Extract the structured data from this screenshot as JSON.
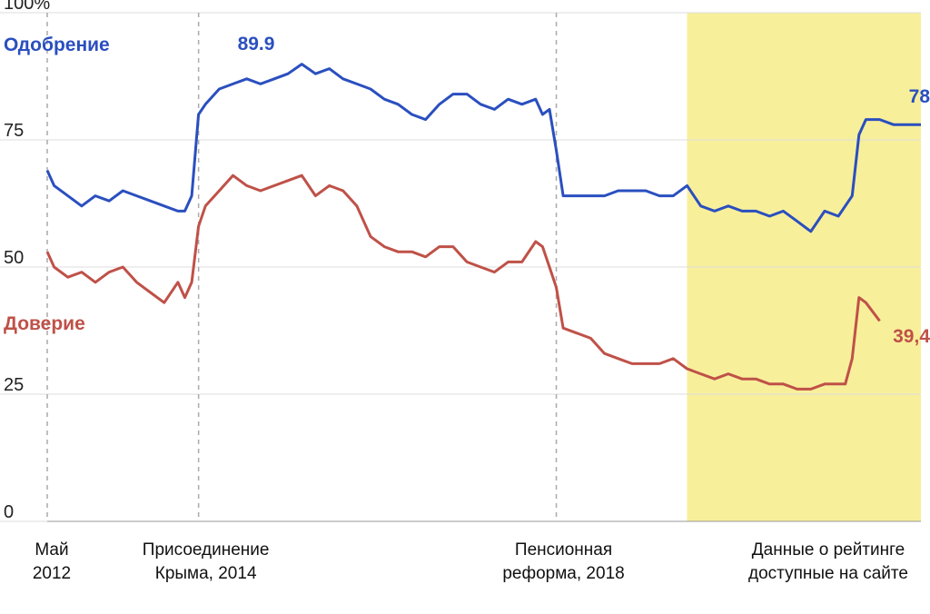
{
  "chart_data": {
    "type": "line",
    "ylim": [
      0,
      100
    ],
    "x_range": [
      "2012-05",
      "2022-12"
    ],
    "y_ticks": [
      "0",
      "25",
      "50",
      "75",
      "100%"
    ],
    "grid": true,
    "series": [
      {
        "name": "Одобрение",
        "color": "#2a4fbf",
        "points": [
          [
            "2012-05",
            69
          ],
          [
            "2012-06",
            66
          ],
          [
            "2012-08",
            64
          ],
          [
            "2012-10",
            62
          ],
          [
            "2012-12",
            64
          ],
          [
            "2013-02",
            63
          ],
          [
            "2013-04",
            65
          ],
          [
            "2013-06",
            64
          ],
          [
            "2013-08",
            63
          ],
          [
            "2013-10",
            62
          ],
          [
            "2013-12",
            61
          ],
          [
            "2014-01",
            61
          ],
          [
            "2014-02",
            64
          ],
          [
            "2014-03",
            80
          ],
          [
            "2014-04",
            82
          ],
          [
            "2014-06",
            85
          ],
          [
            "2014-08",
            86
          ],
          [
            "2014-10",
            87
          ],
          [
            "2014-12",
            86
          ],
          [
            "2015-02",
            87
          ],
          [
            "2015-04",
            88
          ],
          [
            "2015-06",
            89.9
          ],
          [
            "2015-08",
            88
          ],
          [
            "2015-10",
            89
          ],
          [
            "2015-12",
            87
          ],
          [
            "2016-02",
            86
          ],
          [
            "2016-04",
            85
          ],
          [
            "2016-06",
            83
          ],
          [
            "2016-08",
            82
          ],
          [
            "2016-10",
            80
          ],
          [
            "2016-12",
            79
          ],
          [
            "2017-02",
            82
          ],
          [
            "2017-04",
            84
          ],
          [
            "2017-06",
            84
          ],
          [
            "2017-08",
            82
          ],
          [
            "2017-10",
            81
          ],
          [
            "2017-12",
            83
          ],
          [
            "2018-02",
            82
          ],
          [
            "2018-04",
            83
          ],
          [
            "2018-05",
            80
          ],
          [
            "2018-06",
            81
          ],
          [
            "2018-07",
            73
          ],
          [
            "2018-08",
            64
          ],
          [
            "2018-10",
            64
          ],
          [
            "2018-12",
            64
          ],
          [
            "2019-02",
            64
          ],
          [
            "2019-04",
            65
          ],
          [
            "2019-06",
            65
          ],
          [
            "2019-08",
            65
          ],
          [
            "2019-10",
            64
          ],
          [
            "2019-12",
            64
          ],
          [
            "2020-02",
            66
          ],
          [
            "2020-04",
            62
          ],
          [
            "2020-06",
            61
          ],
          [
            "2020-08",
            62
          ],
          [
            "2020-10",
            61
          ],
          [
            "2020-12",
            61
          ],
          [
            "2021-02",
            60
          ],
          [
            "2021-04",
            61
          ],
          [
            "2021-06",
            59
          ],
          [
            "2021-08",
            57
          ],
          [
            "2021-10",
            61
          ],
          [
            "2021-12",
            60
          ],
          [
            "2022-01",
            62
          ],
          [
            "2022-02",
            64
          ],
          [
            "2022-03",
            76
          ],
          [
            "2022-04",
            79
          ],
          [
            "2022-06",
            79
          ],
          [
            "2022-08",
            78
          ],
          [
            "2022-10",
            78
          ],
          [
            "2022-12",
            78
          ]
        ]
      },
      {
        "name": "Доверие",
        "color": "#bf5148",
        "points": [
          [
            "2012-05",
            53
          ],
          [
            "2012-06",
            50
          ],
          [
            "2012-08",
            48
          ],
          [
            "2012-10",
            49
          ],
          [
            "2012-12",
            47
          ],
          [
            "2013-02",
            49
          ],
          [
            "2013-04",
            50
          ],
          [
            "2013-06",
            47
          ],
          [
            "2013-08",
            45
          ],
          [
            "2013-10",
            43
          ],
          [
            "2013-12",
            47
          ],
          [
            "2014-01",
            44
          ],
          [
            "2014-02",
            47
          ],
          [
            "2014-03",
            58
          ],
          [
            "2014-04",
            62
          ],
          [
            "2014-06",
            65
          ],
          [
            "2014-08",
            68
          ],
          [
            "2014-10",
            66
          ],
          [
            "2014-12",
            65
          ],
          [
            "2015-02",
            66
          ],
          [
            "2015-04",
            67
          ],
          [
            "2015-06",
            68
          ],
          [
            "2015-08",
            64
          ],
          [
            "2015-10",
            66
          ],
          [
            "2015-12",
            65
          ],
          [
            "2016-02",
            62
          ],
          [
            "2016-04",
            56
          ],
          [
            "2016-06",
            54
          ],
          [
            "2016-08",
            53
          ],
          [
            "2016-10",
            53
          ],
          [
            "2016-12",
            52
          ],
          [
            "2017-02",
            54
          ],
          [
            "2017-04",
            54
          ],
          [
            "2017-06",
            51
          ],
          [
            "2017-08",
            50
          ],
          [
            "2017-10",
            49
          ],
          [
            "2017-12",
            51
          ],
          [
            "2018-02",
            51
          ],
          [
            "2018-04",
            55
          ],
          [
            "2018-05",
            54
          ],
          [
            "2018-06",
            50
          ],
          [
            "2018-07",
            46
          ],
          [
            "2018-08",
            38
          ],
          [
            "2018-10",
            37
          ],
          [
            "2018-12",
            36
          ],
          [
            "2019-02",
            33
          ],
          [
            "2019-04",
            32
          ],
          [
            "2019-06",
            31
          ],
          [
            "2019-08",
            31
          ],
          [
            "2019-10",
            31
          ],
          [
            "2019-12",
            32
          ],
          [
            "2020-02",
            30
          ],
          [
            "2020-04",
            29
          ],
          [
            "2020-06",
            28
          ],
          [
            "2020-08",
            29
          ],
          [
            "2020-10",
            28
          ],
          [
            "2020-12",
            28
          ],
          [
            "2021-02",
            27
          ],
          [
            "2021-04",
            27
          ],
          [
            "2021-06",
            26
          ],
          [
            "2021-08",
            26
          ],
          [
            "2021-10",
            27
          ],
          [
            "2021-12",
            27
          ],
          [
            "2022-01",
            27
          ],
          [
            "2022-02",
            32
          ],
          [
            "2022-03",
            44
          ],
          [
            "2022-04",
            43
          ],
          [
            "2022-06",
            39.4
          ]
        ]
      }
    ],
    "annotations": [
      {
        "date": "2012-05",
        "label_lines": [
          "Май",
          "2012"
        ],
        "line": true
      },
      {
        "date": "2014-03",
        "label_lines": [
          "Присоединение",
          "Крыма, 2014"
        ],
        "line": true
      },
      {
        "date": "2018-07",
        "label_lines": [
          "Пенсионная",
          "реформа, 2018"
        ],
        "line": true
      }
    ],
    "highlight": {
      "from": "2020-02",
      "to": "2022-12",
      "color": "#f8ef9b",
      "label_lines": [
        "Данные о рейтинге",
        "доступные на сайте"
      ]
    },
    "value_labels": [
      {
        "series": "Одобрение",
        "text": "89.9"
      },
      {
        "series": "Одобрение",
        "text": "78"
      },
      {
        "series": "Доверие",
        "text": "39,4"
      }
    ]
  }
}
